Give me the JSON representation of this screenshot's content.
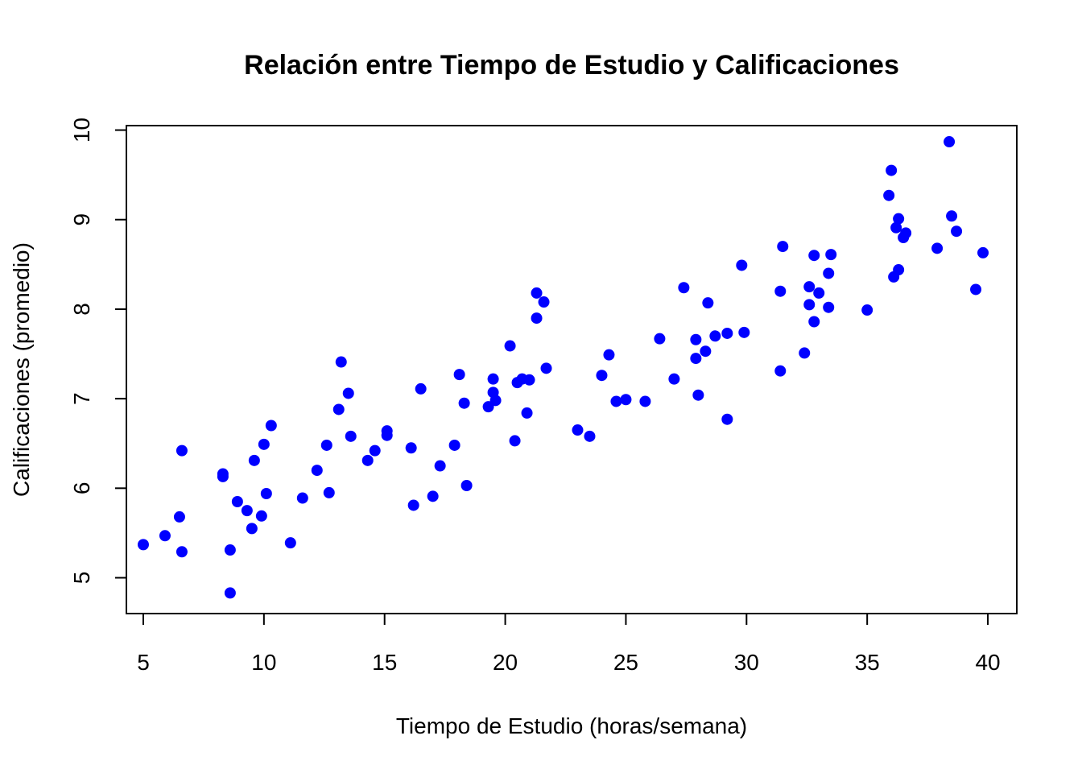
{
  "chart_data": {
    "type": "scatter",
    "title": "Relación entre Tiempo de Estudio y Calificaciones",
    "xlabel": "Tiempo de Estudio (horas/semana)",
    "ylabel": "Calificaciones (promedio)",
    "xlim": [
      4.3,
      41.2
    ],
    "ylim": [
      4.6,
      10.05
    ],
    "xticks": [
      5,
      10,
      15,
      20,
      25,
      30,
      35,
      40
    ],
    "yticks": [
      5,
      6,
      7,
      8,
      9,
      10
    ],
    "point_color": "#0000FF",
    "grid": false,
    "x": [
      5.0,
      5.9,
      6.5,
      6.6,
      6.6,
      8.3,
      8.3,
      8.6,
      8.6,
      8.9,
      9.3,
      9.5,
      9.6,
      9.9,
      10.0,
      10.1,
      10.3,
      11.1,
      11.6,
      12.2,
      12.6,
      12.7,
      13.1,
      13.2,
      13.5,
      13.6,
      14.3,
      14.6,
      15.1,
      15.1,
      16.1,
      16.2,
      16.5,
      17.0,
      17.3,
      17.9,
      18.1,
      18.3,
      18.4,
      19.3,
      19.5,
      19.5,
      19.6,
      20.2,
      20.4,
      20.5,
      20.7,
      20.9,
      21.0,
      21.3,
      21.3,
      21.6,
      21.7,
      23.0,
      23.5,
      24.0,
      24.3,
      24.6,
      25.0,
      25.8,
      26.4,
      27.0,
      27.4,
      27.9,
      27.9,
      28.0,
      28.3,
      28.4,
      28.7,
      29.2,
      29.2,
      29.8,
      29.9,
      31.4,
      31.4,
      31.5,
      32.4,
      32.6,
      32.6,
      32.8,
      32.8,
      33.0,
      33.4,
      33.4,
      33.5,
      35.0,
      35.9,
      36.0,
      36.1,
      36.2,
      36.3,
      36.3,
      36.5,
      36.6,
      37.9,
      38.4,
      38.5,
      38.7,
      39.5,
      39.8
    ],
    "y": [
      5.37,
      5.47,
      5.68,
      6.42,
      5.29,
      6.16,
      6.13,
      5.31,
      4.83,
      5.85,
      5.75,
      5.55,
      6.31,
      5.69,
      6.49,
      5.94,
      6.7,
      5.39,
      5.89,
      6.2,
      6.48,
      5.95,
      6.88,
      7.41,
      7.06,
      6.58,
      6.31,
      6.42,
      6.64,
      6.59,
      6.45,
      5.81,
      7.11,
      5.91,
      6.25,
      6.48,
      7.27,
      6.95,
      6.03,
      6.91,
      7.22,
      7.07,
      6.98,
      7.59,
      6.53,
      7.18,
      7.22,
      6.84,
      7.21,
      8.18,
      7.9,
      8.08,
      7.34,
      6.65,
      6.58,
      7.26,
      7.49,
      6.97,
      6.99,
      6.97,
      7.67,
      7.22,
      8.24,
      7.66,
      7.45,
      7.04,
      7.53,
      8.07,
      7.7,
      7.73,
      6.77,
      8.49,
      7.74,
      7.31,
      8.2,
      8.7,
      7.51,
      8.25,
      8.05,
      8.6,
      7.86,
      8.18,
      8.4,
      8.02,
      8.61,
      7.99,
      9.27,
      9.55,
      8.36,
      8.91,
      9.01,
      8.44,
      8.8,
      8.85,
      8.68,
      9.87,
      9.04,
      8.87,
      8.22,
      8.63
    ]
  }
}
